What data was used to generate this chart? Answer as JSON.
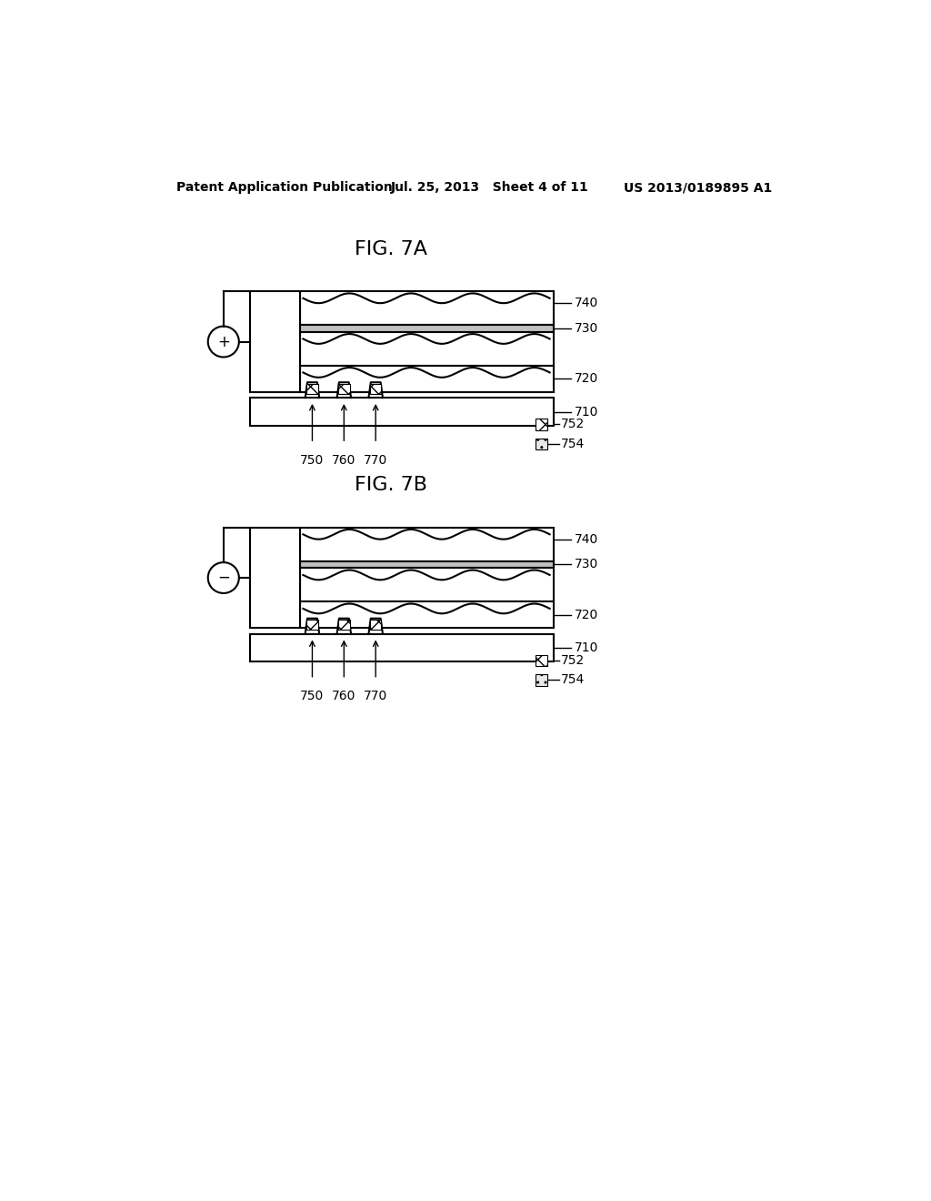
{
  "header_left": "Patent Application Publication",
  "header_center": "Jul. 25, 2013   Sheet 4 of 11",
  "header_right": "US 2013/0189895 A1",
  "fig7a_title": "FIG. 7A",
  "fig7b_title": "FIG. 7B",
  "bg_color": "#ffffff",
  "line_color": "#000000",
  "label_710": "710",
  "label_720": "720",
  "label_730": "730",
  "label_740": "740",
  "label_750": "750",
  "label_760": "760",
  "label_770": "770",
  "label_752": "752",
  "label_754": "754",
  "sign_7a": "+",
  "sign_7b": "−"
}
